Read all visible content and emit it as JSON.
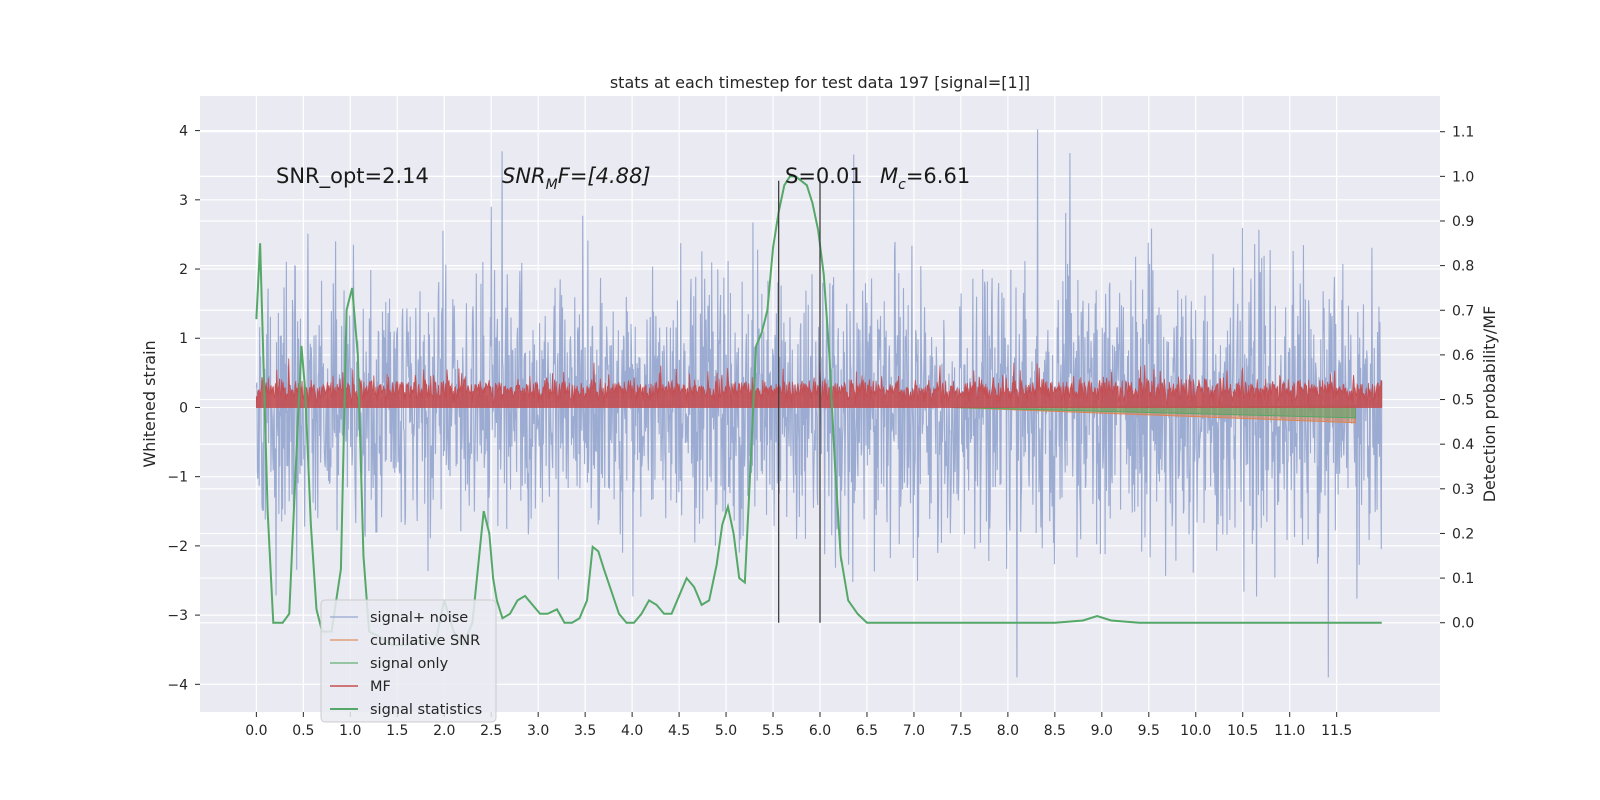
{
  "chart_data": {
    "type": "line",
    "title": "stats at each timestep for test data 197 [signal=[1]]",
    "xlabel": "",
    "ylabel": "Whitened strain",
    "ylabel_right": "Detection probability/MF",
    "xlim": [
      -0.6,
      12.6
    ],
    "ylim": [
      -4.4,
      4.5
    ],
    "ylim_right": [
      -0.2,
      1.18
    ],
    "x_ticks": [
      "0.0",
      "0.5",
      "1.0",
      "1.5",
      "2.0",
      "2.5",
      "3.0",
      "3.5",
      "4.0",
      "4.5",
      "5.0",
      "5.5",
      "6.0",
      "6.5",
      "7.0",
      "7.5",
      "8.0",
      "8.5",
      "9.0",
      "9.5",
      "10.0",
      "10.5",
      "11.0",
      "11.5"
    ],
    "y_ticks": [
      "4",
      "3",
      "2",
      "1",
      "0",
      "−1",
      "−2",
      "−3",
      "−4"
    ],
    "y_ticks_right": [
      "1.1",
      "1.0",
      "0.9",
      "0.8",
      "0.7",
      "0.6",
      "0.5",
      "0.4",
      "0.3",
      "0.2",
      "0.1",
      "0.0"
    ],
    "grid": true,
    "legend_position": "lower-left",
    "annotations": {
      "snr_opt": "SNR_opt=2.14",
      "snr_mf": "SNR",
      "snr_mf_sub": "M",
      "snr_mf_tail": "F=[4.88]",
      "s_stat": "S=0.01",
      "mc_label": "M",
      "mc_sub": "c",
      "mc_tail": "=6.61"
    },
    "vertical_lines_x": [
      5.56,
      6.0
    ],
    "series": [
      {
        "name": "signal+ noise",
        "color": "#8da0cb",
        "axis": "left",
        "kind": "noise",
        "x_range": [
          0.0,
          11.98
        ],
        "std": 1.0
      },
      {
        "name": "cumilative SNR",
        "color": "#dd8452",
        "axis": "left",
        "kind": "wedge",
        "x": [
          7.4,
          11.7
        ],
        "y_top": [
          0.0,
          0.0
        ],
        "y_bottom": [
          0.0,
          -0.22
        ]
      },
      {
        "name": "signal only",
        "color": "#55a868",
        "axis": "left",
        "kind": "wedge",
        "x": [
          7.4,
          11.7
        ],
        "y_top": [
          0.0,
          0.02
        ],
        "y_bottom": [
          0.0,
          -0.15
        ]
      },
      {
        "name": "MF",
        "color": "#c44e52",
        "axis": "left",
        "kind": "band",
        "x_range": [
          0.0,
          11.98
        ],
        "base": 0.0,
        "mean": 0.25,
        "spread": 0.18
      },
      {
        "name": "signal statistics",
        "color": "#55a868",
        "axis": "right",
        "kind": "line",
        "x": [
          0.0,
          0.04,
          0.06,
          0.12,
          0.18,
          0.2,
          0.28,
          0.35,
          0.42,
          0.48,
          0.52,
          0.58,
          0.64,
          0.7,
          0.8,
          0.9,
          0.96,
          1.02,
          1.08,
          1.14,
          1.2,
          1.3,
          1.45,
          1.6,
          1.75,
          1.9,
          2.0,
          2.1,
          2.2,
          2.3,
          2.42,
          2.48,
          2.52,
          2.56,
          2.62,
          2.7,
          2.78,
          2.86,
          2.94,
          3.02,
          3.1,
          3.2,
          3.28,
          3.36,
          3.44,
          3.52,
          3.58,
          3.64,
          3.7,
          3.78,
          3.86,
          3.94,
          4.02,
          4.1,
          4.18,
          4.26,
          4.34,
          4.42,
          4.5,
          4.58,
          4.66,
          4.74,
          4.82,
          4.9,
          4.96,
          5.02,
          5.08,
          5.14,
          5.2,
          5.26,
          5.32,
          5.38,
          5.44,
          5.5,
          5.56,
          5.62,
          5.68,
          5.74,
          5.8,
          5.86,
          5.92,
          5.98,
          6.04,
          6.1,
          6.16,
          6.22,
          6.3,
          6.4,
          6.5,
          6.6,
          6.8,
          7.0,
          7.5,
          8.0,
          8.5,
          8.8,
          8.95,
          9.1,
          9.4,
          10.0,
          10.5,
          11.0,
          11.5,
          11.98
        ],
        "y": [
          0.68,
          0.85,
          0.7,
          0.25,
          0.0,
          0.0,
          0.0,
          0.02,
          0.35,
          0.62,
          0.52,
          0.22,
          0.03,
          -0.02,
          -0.02,
          0.12,
          0.7,
          0.75,
          0.6,
          0.15,
          -0.02,
          -0.03,
          -0.05,
          -0.05,
          -0.04,
          -0.05,
          0.05,
          -0.02,
          -0.05,
          0.0,
          0.25,
          0.2,
          0.1,
          0.05,
          0.01,
          0.02,
          0.05,
          0.06,
          0.04,
          0.02,
          0.02,
          0.03,
          0.0,
          0.0,
          0.01,
          0.05,
          0.17,
          0.16,
          0.12,
          0.07,
          0.02,
          0.0,
          0.0,
          0.02,
          0.05,
          0.04,
          0.02,
          0.02,
          0.06,
          0.1,
          0.08,
          0.04,
          0.05,
          0.13,
          0.22,
          0.26,
          0.2,
          0.1,
          0.09,
          0.35,
          0.62,
          0.65,
          0.7,
          0.84,
          0.92,
          0.98,
          1.0,
          1.0,
          0.99,
          0.98,
          0.94,
          0.88,
          0.78,
          0.6,
          0.35,
          0.15,
          0.05,
          0.02,
          0.0,
          0.0,
          0.0,
          0.0,
          0.0,
          0.0,
          0.0,
          0.005,
          0.015,
          0.005,
          0.0,
          0.0,
          0.0,
          0.0,
          0.0,
          0.0
        ]
      }
    ]
  }
}
